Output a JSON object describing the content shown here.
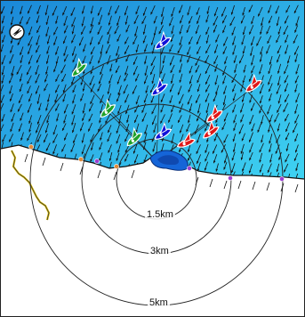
{
  "map": {
    "colors": {
      "sea_dark": "#1a88d8",
      "sea_light": "#3fd3f2",
      "land": "#ffffff",
      "arrow": "#111111",
      "ring": "#222222",
      "site": "#1565d8",
      "beach_track": "#e0c000"
    },
    "range_rings": [
      {
        "label": "1.5km",
        "km": 1.5
      },
      {
        "label": "3km",
        "km": 3
      },
      {
        "label": "5km",
        "km": 5
      }
    ],
    "compass": {
      "icon": "compass-icon"
    },
    "markers": [
      {
        "kind": "sailboat",
        "color": "#1fa12a"
      },
      {
        "kind": "sailboat",
        "color": "#1fa12a"
      },
      {
        "kind": "sailboat",
        "color": "#1fa12a"
      },
      {
        "kind": "sailboat",
        "color": "#1010d8"
      },
      {
        "kind": "sailboat",
        "color": "#1010d8"
      },
      {
        "kind": "sailboat",
        "color": "#1010d8"
      },
      {
        "kind": "sailboat",
        "color": "#e01818"
      },
      {
        "kind": "sailboat",
        "color": "#e01818"
      },
      {
        "kind": "sailboat",
        "color": "#e01818"
      },
      {
        "kind": "sailboat",
        "color": "#e01818"
      }
    ],
    "shore_points": [
      {
        "color": "#e08a3a"
      },
      {
        "color": "#e08a3a"
      },
      {
        "color": "#e08a3a"
      },
      {
        "color": "#9b3fd1"
      },
      {
        "color": "#9b3fd1"
      },
      {
        "color": "#9b3fd1"
      },
      {
        "color": "#9b3fd1"
      }
    ]
  }
}
